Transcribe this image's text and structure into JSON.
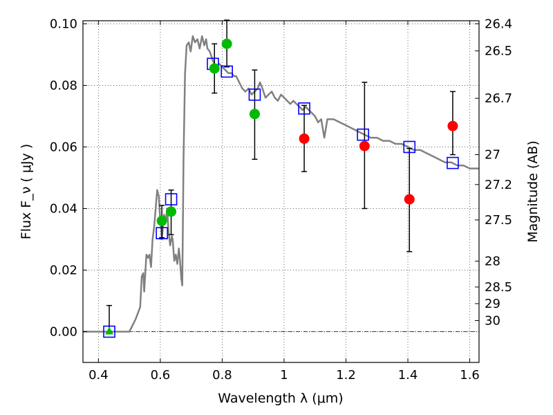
{
  "chart_data": {
    "type": "scatter",
    "title": "",
    "xlabel": "Wavelength  λ (μm)",
    "ylabel": "Flux  F_ν  ( μJy )",
    "ylabel_right": "Magnitude (AB)",
    "xlim": [
      0.35,
      1.63
    ],
    "ylim": [
      -0.01,
      0.101
    ],
    "grid": true,
    "x_ticks": [
      {
        "value": 0.4,
        "label": "0.4"
      },
      {
        "value": 0.6,
        "label": "0.6"
      },
      {
        "value": 0.8,
        "label": "0.8"
      },
      {
        "value": 1.0,
        "label": "1"
      },
      {
        "value": 1.2,
        "label": "1.2"
      },
      {
        "value": 1.4,
        "label": "1.4"
      },
      {
        "value": 1.6,
        "label": "1.6"
      }
    ],
    "y_ticks": [
      {
        "value": 0.0,
        "label": "0.00"
      },
      {
        "value": 0.02,
        "label": "0.02"
      },
      {
        "value": 0.04,
        "label": "0.04"
      },
      {
        "value": 0.06,
        "label": "0.06"
      },
      {
        "value": 0.08,
        "label": "0.08"
      },
      {
        "value": 0.1,
        "label": "0.10"
      }
    ],
    "right_ticks": [
      {
        "flux": 0.1,
        "label": "26.4"
      },
      {
        "flux": 0.0912,
        "label": "26.5"
      },
      {
        "flux": 0.0758,
        "label": "26.7"
      },
      {
        "flux": 0.0575,
        "label": "27"
      },
      {
        "flux": 0.0478,
        "label": "27.2"
      },
      {
        "flux": 0.0363,
        "label": "27.5"
      },
      {
        "flux": 0.0229,
        "label": "28"
      },
      {
        "flux": 0.0145,
        "label": "28.5"
      },
      {
        "flux": 0.0091,
        "label": "29"
      },
      {
        "flux": 0.0036,
        "label": "30"
      }
    ],
    "series": [
      {
        "kind": "model_sed",
        "color": "#808080",
        "points": [
          [
            0.35,
            0.0
          ],
          [
            0.48,
            0.0
          ],
          [
            0.5,
            0.0
          ],
          [
            0.52,
            0.004
          ],
          [
            0.535,
            0.008
          ],
          [
            0.54,
            0.018
          ],
          [
            0.545,
            0.019
          ],
          [
            0.548,
            0.013
          ],
          [
            0.555,
            0.025
          ],
          [
            0.56,
            0.024
          ],
          [
            0.565,
            0.025
          ],
          [
            0.57,
            0.021
          ],
          [
            0.575,
            0.03
          ],
          [
            0.58,
            0.034
          ],
          [
            0.585,
            0.04
          ],
          [
            0.59,
            0.046
          ],
          [
            0.595,
            0.044
          ],
          [
            0.6,
            0.036
          ],
          [
            0.603,
            0.033
          ],
          [
            0.605,
            0.03
          ],
          [
            0.612,
            0.038
          ],
          [
            0.618,
            0.036
          ],
          [
            0.622,
            0.04
          ],
          [
            0.627,
            0.032
          ],
          [
            0.632,
            0.028
          ],
          [
            0.637,
            0.031
          ],
          [
            0.64,
            0.03
          ],
          [
            0.645,
            0.023
          ],
          [
            0.65,
            0.025
          ],
          [
            0.655,
            0.022
          ],
          [
            0.66,
            0.027
          ],
          [
            0.663,
            0.024
          ],
          [
            0.668,
            0.017
          ],
          [
            0.671,
            0.015
          ],
          [
            0.675,
            0.056
          ],
          [
            0.68,
            0.084
          ],
          [
            0.685,
            0.093
          ],
          [
            0.692,
            0.094
          ],
          [
            0.698,
            0.091
          ],
          [
            0.705,
            0.096
          ],
          [
            0.712,
            0.094
          ],
          [
            0.72,
            0.095
          ],
          [
            0.727,
            0.092
          ],
          [
            0.735,
            0.096
          ],
          [
            0.742,
            0.093
          ],
          [
            0.748,
            0.095
          ],
          [
            0.752,
            0.092
          ],
          [
            0.76,
            0.091
          ],
          [
            0.77,
            0.088
          ],
          [
            0.78,
            0.086
          ],
          [
            0.79,
            0.087
          ],
          [
            0.8,
            0.086
          ],
          [
            0.81,
            0.085
          ],
          [
            0.82,
            0.084
          ],
          [
            0.83,
            0.084
          ],
          [
            0.838,
            0.083
          ],
          [
            0.845,
            0.083
          ],
          [
            0.85,
            0.082
          ],
          [
            0.855,
            0.081
          ],
          [
            0.865,
            0.079
          ],
          [
            0.875,
            0.078
          ],
          [
            0.885,
            0.079
          ],
          [
            0.895,
            0.077
          ],
          [
            0.905,
            0.078
          ],
          [
            0.915,
            0.079
          ],
          [
            0.922,
            0.081
          ],
          [
            0.93,
            0.079
          ],
          [
            0.94,
            0.076
          ],
          [
            0.95,
            0.077
          ],
          [
            0.96,
            0.078
          ],
          [
            0.97,
            0.076
          ],
          [
            0.98,
            0.075
          ],
          [
            0.99,
            0.077
          ],
          [
            1.0,
            0.076
          ],
          [
            1.01,
            0.075
          ],
          [
            1.02,
            0.074
          ],
          [
            1.03,
            0.075
          ],
          [
            1.04,
            0.074
          ],
          [
            1.05,
            0.073
          ],
          [
            1.06,
            0.072
          ],
          [
            1.07,
            0.073
          ],
          [
            1.08,
            0.072
          ],
          [
            1.09,
            0.071
          ],
          [
            1.1,
            0.07
          ],
          [
            1.11,
            0.068
          ],
          [
            1.12,
            0.069
          ],
          [
            1.125,
            0.066
          ],
          [
            1.13,
            0.063
          ],
          [
            1.14,
            0.069
          ],
          [
            1.16,
            0.069
          ],
          [
            1.18,
            0.068
          ],
          [
            1.2,
            0.067
          ],
          [
            1.22,
            0.066
          ],
          [
            1.24,
            0.065
          ],
          [
            1.26,
            0.064
          ],
          [
            1.28,
            0.063
          ],
          [
            1.3,
            0.063
          ],
          [
            1.32,
            0.062
          ],
          [
            1.34,
            0.062
          ],
          [
            1.36,
            0.061
          ],
          [
            1.38,
            0.061
          ],
          [
            1.4,
            0.06
          ],
          [
            1.42,
            0.059
          ],
          [
            1.44,
            0.059
          ],
          [
            1.46,
            0.058
          ],
          [
            1.48,
            0.057
          ],
          [
            1.5,
            0.056
          ],
          [
            1.52,
            0.055
          ],
          [
            1.54,
            0.055
          ],
          [
            1.56,
            0.054
          ],
          [
            1.58,
            0.054
          ],
          [
            1.6,
            0.053
          ],
          [
            1.63,
            0.053
          ]
        ]
      },
      {
        "kind": "model_photometry",
        "marker": "open-square",
        "color": "#0000ff",
        "points": [
          [
            0.435,
            0.0
          ],
          [
            0.605,
            0.032
          ],
          [
            0.635,
            0.043
          ],
          [
            0.77,
            0.087
          ],
          [
            0.815,
            0.0845
          ],
          [
            0.905,
            0.077
          ],
          [
            1.065,
            0.0725
          ],
          [
            1.255,
            0.064
          ],
          [
            1.405,
            0.06
          ],
          [
            1.545,
            0.0548
          ]
        ]
      },
      {
        "kind": "observed_hst_acs",
        "marker": "triangle",
        "color": "#00bb00",
        "points": [
          {
            "x": 0.435,
            "y": 0.0,
            "yerr": [
              0.0,
              0.0085
            ]
          }
        ]
      },
      {
        "kind": "observed_hst_acs",
        "marker": "circle",
        "color": "#00bb00",
        "points": [
          {
            "x": 0.605,
            "y": 0.036,
            "yerr": [
              0.0305,
              0.041
            ]
          },
          {
            "x": 0.635,
            "y": 0.039,
            "yerr": [
              0.0315,
              0.046
            ]
          },
          {
            "x": 0.775,
            "y": 0.0855,
            "yerr": [
              0.0775,
              0.0935
            ]
          },
          {
            "x": 0.815,
            "y": 0.0935,
            "yerr": [
              0.086,
              0.1012
            ]
          },
          {
            "x": 0.905,
            "y": 0.0707,
            "yerr": [
              0.056,
              0.085
            ]
          }
        ]
      },
      {
        "kind": "observed_hst_nir",
        "marker": "circle",
        "color": "#ff0000",
        "points": [
          {
            "x": 1.065,
            "y": 0.0627,
            "yerr": [
              0.052,
              0.0735
            ]
          },
          {
            "x": 1.26,
            "y": 0.0603,
            "yerr": [
              0.04,
              0.081
            ]
          },
          {
            "x": 1.405,
            "y": 0.043,
            "yerr": [
              0.026,
              0.0595
            ]
          },
          {
            "x": 1.545,
            "y": 0.0668,
            "yerr": [
              0.0575,
              0.078
            ]
          }
        ]
      }
    ]
  }
}
